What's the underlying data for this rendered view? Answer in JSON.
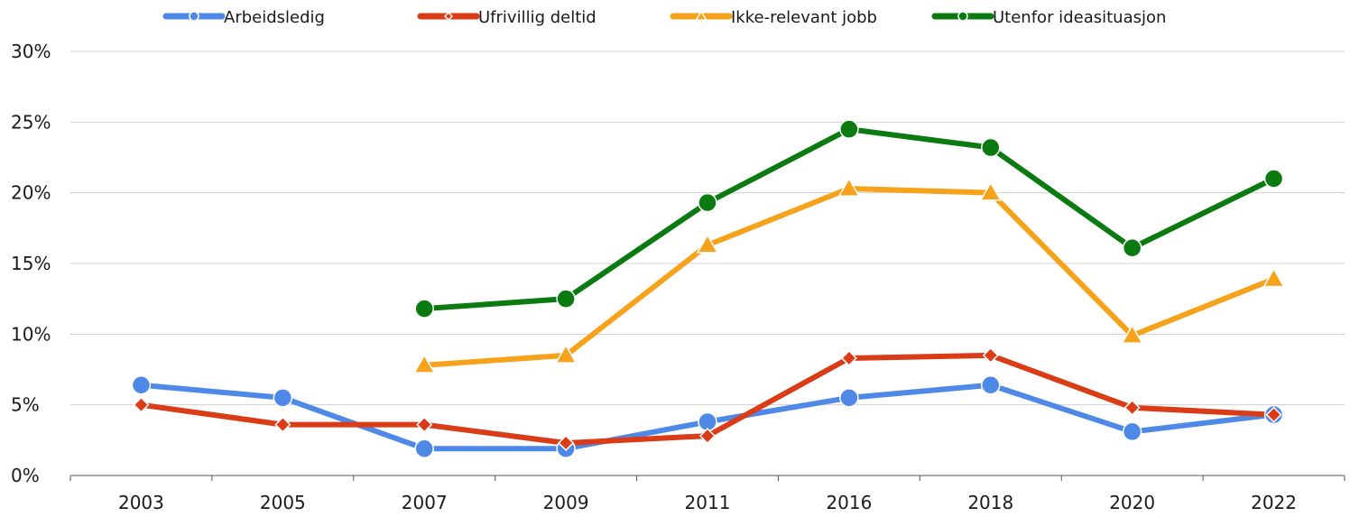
{
  "chart_data": {
    "type": "line",
    "title": "",
    "xlabel": "",
    "ylabel": "",
    "categories": [
      "2003",
      "2005",
      "2007",
      "2009",
      "2011",
      "2016",
      "2018",
      "2020",
      "2022"
    ],
    "ylim": [
      0,
      30
    ],
    "yticks": [
      0,
      5,
      10,
      15,
      20,
      25,
      30
    ],
    "ytick_labels": [
      "0%",
      "5%",
      "10%",
      "15%",
      "20%",
      "25%",
      "30%"
    ],
    "grid": true,
    "legend_position": "top",
    "series": [
      {
        "name": "Arbeidsledig",
        "color": "#4f89e8",
        "marker": "circle",
        "values": [
          6.4,
          5.5,
          1.9,
          1.9,
          3.8,
          5.5,
          6.4,
          3.1,
          4.3
        ]
      },
      {
        "name": "Ufrivillig deltid",
        "color": "#d93c17",
        "marker": "diamond",
        "values": [
          5.0,
          3.6,
          3.6,
          2.3,
          2.8,
          8.3,
          8.5,
          4.8,
          4.3
        ]
      },
      {
        "name": "Ikke-relevant jobb",
        "color": "#f7a21b",
        "marker": "triangle",
        "values": [
          null,
          null,
          7.8,
          8.5,
          16.3,
          20.3,
          20.0,
          9.9,
          13.9
        ]
      },
      {
        "name": "Utenfor ideasituasjon",
        "color": "#0b7a10",
        "marker": "circle",
        "values": [
          null,
          null,
          11.8,
          12.5,
          19.3,
          24.5,
          23.2,
          16.1,
          21.0
        ]
      }
    ]
  }
}
